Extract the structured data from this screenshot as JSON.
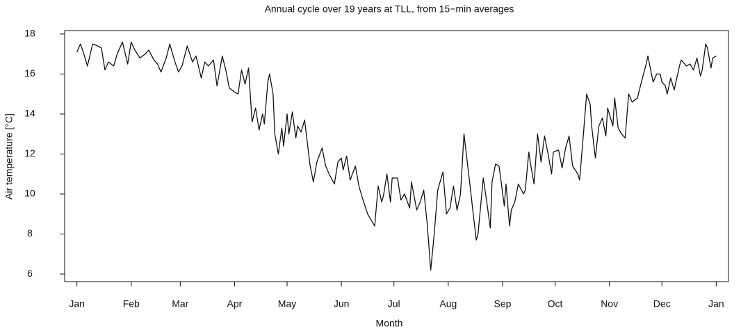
{
  "chart_data": {
    "type": "line",
    "title": "Annual cycle over 19 years at TLL, from 15−min averages",
    "xlabel": "Month",
    "ylabel": "Air temperature [°C]",
    "x": [
      1,
      3,
      5,
      7,
      10,
      13,
      15,
      17,
      19,
      22,
      24,
      27,
      30,
      32,
      34,
      37,
      40,
      42,
      45,
      47,
      49,
      52,
      54,
      57,
      59,
      61,
      64,
      67,
      69,
      72,
      74,
      76,
      79,
      81,
      84,
      86,
      88,
      91,
      93,
      95,
      97,
      99,
      101,
      103,
      105,
      107,
      108,
      110,
      111,
      113,
      114,
      116,
      118,
      119,
      121,
      122,
      124,
      126,
      127,
      129,
      131,
      134,
      136,
      138,
      141,
      143,
      145,
      148,
      150,
      152,
      153,
      155,
      157,
      160,
      162,
      164,
      167,
      169,
      171,
      173,
      175,
      176,
      178,
      180,
      181,
      184,
      186,
      188,
      191,
      192,
      195,
      197,
      199,
      201,
      203,
      205,
      207,
      210,
      212,
      214,
      216,
      218,
      220,
      222,
      224,
      226,
      227,
      229,
      230,
      233,
      235,
      237,
      238,
      240,
      242,
      245,
      246,
      248,
      249,
      251,
      253,
      256,
      257,
      259,
      260,
      262,
      264,
      266,
      268,
      270,
      272,
      273,
      276,
      278,
      280,
      282,
      284,
      287,
      288,
      290,
      292,
      294,
      295,
      297,
      299,
      301,
      303,
      304,
      307,
      308,
      310,
      312,
      314,
      316,
      318,
      321,
      323,
      326,
      327,
      329,
      330,
      332,
      334,
      335,
      337,
      338,
      340,
      342,
      345,
      346,
      349,
      351,
      353,
      355,
      357,
      358,
      360,
      361,
      363,
      364,
      366
    ],
    "series": [
      {
        "name": "Air temperature",
        "color": "#111111",
        "values": [
          17.1,
          17.5,
          17.0,
          16.4,
          17.5,
          17.4,
          17.3,
          16.2,
          16.6,
          16.4,
          17.0,
          17.6,
          16.5,
          17.6,
          17.2,
          16.8,
          17.0,
          17.2,
          16.7,
          16.5,
          16.1,
          16.8,
          17.5,
          16.6,
          16.1,
          16.4,
          17.4,
          16.6,
          16.9,
          15.8,
          16.6,
          16.4,
          16.7,
          15.4,
          16.9,
          16.2,
          15.3,
          15.1,
          15.0,
          16.2,
          15.5,
          16.3,
          13.6,
          14.3,
          13.2,
          14.0,
          13.5,
          15.6,
          16.0,
          15.0,
          13.0,
          12.0,
          13.3,
          12.4,
          14.0,
          13.0,
          14.1,
          12.8,
          13.4,
          13.1,
          13.7,
          11.5,
          10.6,
          11.6,
          12.3,
          11.4,
          11.0,
          10.5,
          11.6,
          11.8,
          11.2,
          11.9,
          10.7,
          11.4,
          10.4,
          9.8,
          9.0,
          8.7,
          8.4,
          10.4,
          9.6,
          9.9,
          11.0,
          9.6,
          10.8,
          10.8,
          9.7,
          10.0,
          9.3,
          10.6,
          9.2,
          9.6,
          10.2,
          8.5,
          6.2,
          8.0,
          10.2,
          11.1,
          9.0,
          9.3,
          10.4,
          9.2,
          10.0,
          13.0,
          11.5,
          10.0,
          9.2,
          7.7,
          8.0,
          10.8,
          9.6,
          8.3,
          10.6,
          11.5,
          11.4,
          9.4,
          10.5,
          8.4,
          9.2,
          9.6,
          10.5,
          10.0,
          10.2,
          12.1,
          11.5,
          10.5,
          13.0,
          11.6,
          12.9,
          12.0,
          11.0,
          12.1,
          12.2,
          11.3,
          12.3,
          12.9,
          11.4,
          11.0,
          10.7,
          12.8,
          15.0,
          14.5,
          13.3,
          11.8,
          13.4,
          13.8,
          12.9,
          14.3,
          13.4,
          14.8,
          13.3,
          13.0,
          12.8,
          15.0,
          14.6,
          14.8,
          15.5,
          16.5,
          16.9,
          16.0,
          15.6,
          16.0,
          16.0,
          15.6,
          15.4,
          15.0,
          15.8,
          15.2,
          16.4,
          16.7,
          16.4,
          16.5,
          16.2,
          16.8,
          15.9,
          16.2,
          17.5,
          17.3,
          16.3,
          16.8,
          16.9
        ]
      }
    ],
    "xlim": [
      -6,
      373
    ],
    "ylim": [
      5.62,
      18.17
    ],
    "xticks": [
      {
        "value": 1,
        "label": "Jan"
      },
      {
        "value": 32,
        "label": "Feb"
      },
      {
        "value": 60,
        "label": "Mar"
      },
      {
        "value": 91,
        "label": "Apr"
      },
      {
        "value": 121,
        "label": "May"
      },
      {
        "value": 152,
        "label": "Jun"
      },
      {
        "value": 182,
        "label": "Jul"
      },
      {
        "value": 213,
        "label": "Aug"
      },
      {
        "value": 244,
        "label": "Sep"
      },
      {
        "value": 274,
        "label": "Oct"
      },
      {
        "value": 305,
        "label": "Nov"
      },
      {
        "value": 335,
        "label": "Dec"
      },
      {
        "value": 366,
        "label": "Jan"
      }
    ],
    "yticks": [
      6,
      8,
      10,
      12,
      14,
      16,
      18
    ],
    "grid": false
  }
}
